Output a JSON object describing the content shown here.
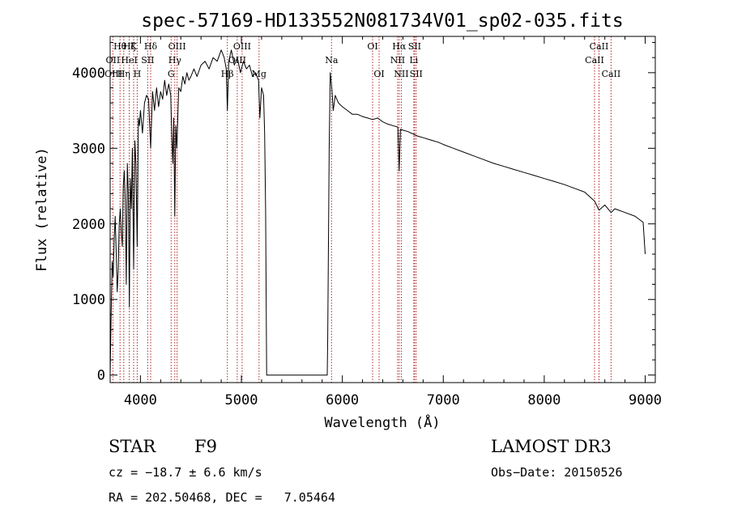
{
  "chart_data": {
    "type": "line",
    "title": "spec-57169-HD133552N081734V01_sp02-035.fits",
    "xlabel": "Wavelength (Å)",
    "ylabel": "Flux (relative)",
    "xlim": [
      3700,
      9100
    ],
    "ylim": [
      -100,
      4480
    ],
    "xticks": [
      4000,
      5000,
      6000,
      7000,
      8000,
      9000
    ],
    "yticks": [
      0,
      1000,
      2000,
      3000,
      4000
    ],
    "grid": false,
    "series": [
      {
        "x": [
          3700,
          3710,
          3720,
          3730,
          3740,
          3750,
          3760,
          3770,
          3780,
          3790,
          3800,
          3810,
          3820,
          3830,
          3840,
          3850,
          3860,
          3870,
          3880,
          3890,
          3900,
          3910,
          3920,
          3933,
          3945,
          3955,
          3968,
          3980,
          3990,
          4000,
          4020,
          4040,
          4060,
          4080,
          4101,
          4120,
          4140,
          4160,
          4180,
          4200,
          4220,
          4240,
          4260,
          4280,
          4300,
          4310,
          4320,
          4330,
          4340,
          4350,
          4360,
          4380,
          4400,
          4420,
          4440,
          4460,
          4480,
          4500,
          4530,
          4560,
          4600,
          4640,
          4680,
          4720,
          4760,
          4800,
          4830,
          4850,
          4861,
          4875,
          4900,
          4930,
          4960,
          4990,
          5020,
          5050,
          5080,
          5110,
          5140,
          5170,
          5183,
          5200,
          5220,
          5230,
          5240,
          5250,
          5850,
          5855,
          5870,
          5880,
          5895,
          5910,
          5930,
          5960,
          6000,
          6050,
          6100,
          6150,
          6200,
          6250,
          6300,
          6350,
          6400,
          6450,
          6500,
          6550,
          6563,
          6575,
          6600,
          6650,
          6700,
          6750,
          6800,
          6850,
          6900,
          6950,
          7000,
          7100,
          7200,
          7300,
          7400,
          7500,
          7600,
          7700,
          7800,
          7900,
          8000,
          8100,
          8200,
          8300,
          8400,
          8500,
          8542,
          8600,
          8662,
          8700,
          8800,
          8900,
          8980,
          9000
        ],
        "y": [
          0,
          800,
          1500,
          1300,
          1800,
          2100,
          1600,
          1100,
          1400,
          2000,
          2200,
          1900,
          1700,
          2500,
          2700,
          2300,
          1200,
          2800,
          2400,
          900,
          2600,
          2200,
          3000,
          1400,
          3100,
          2800,
          1700,
          3400,
          3300,
          3500,
          3200,
          3600,
          3700,
          3650,
          3000,
          3750,
          3500,
          3800,
          3550,
          3750,
          3650,
          3900,
          3700,
          3850,
          3700,
          3200,
          2800,
          3400,
          2100,
          3300,
          3000,
          3800,
          3750,
          3950,
          3850,
          4000,
          3900,
          3950,
          4050,
          3950,
          4100,
          4150,
          4050,
          4200,
          4150,
          4300,
          4200,
          4050,
          3500,
          4150,
          4300,
          4100,
          4200,
          4000,
          4150,
          4050,
          4100,
          3950,
          4000,
          3900,
          3400,
          3800,
          3700,
          3200,
          2200,
          0,
          0,
          500,
          3000,
          4000,
          3800,
          3500,
          3700,
          3600,
          3550,
          3500,
          3450,
          3450,
          3420,
          3400,
          3380,
          3400,
          3350,
          3320,
          3300,
          3280,
          2700,
          3250,
          3240,
          3220,
          3190,
          3160,
          3140,
          3120,
          3100,
          3080,
          3050,
          3000,
          2950,
          2900,
          2850,
          2800,
          2760,
          2720,
          2680,
          2640,
          2600,
          2560,
          2520,
          2470,
          2420,
          2300,
          2180,
          2250,
          2150,
          2200,
          2150,
          2100,
          2020,
          1600
        ]
      }
    ],
    "line_labels": [
      {
        "text": "Hθ",
        "x": 3798,
        "row": 1
      },
      {
        "text": "OII",
        "x": 3727,
        "row": 2
      },
      {
        "text": "OIII",
        "x": 3734,
        "row": 3
      },
      {
        "text": "Hη",
        "x": 3835,
        "row": 3
      },
      {
        "text": "Hζ",
        "x": 3889,
        "row": 1
      },
      {
        "text": "HeI",
        "x": 3889,
        "row": 2
      },
      {
        "text": "K",
        "x": 3933,
        "row": 1
      },
      {
        "text": "H",
        "x": 3968,
        "row": 3
      },
      {
        "text": "Hδ",
        "x": 4101,
        "row": 1
      },
      {
        "text": "SII",
        "x": 4072,
        "row": 2
      },
      {
        "text": "OIII",
        "x": 4363,
        "row": 1
      },
      {
        "text": "Hγ",
        "x": 4340,
        "row": 2
      },
      {
        "text": "G",
        "x": 4304,
        "row": 3
      },
      {
        "text": "OIII",
        "x": 5007,
        "row": 1
      },
      {
        "text": "OIII",
        "x": 4959,
        "row": 2
      },
      {
        "text": "Hβ",
        "x": 4861,
        "row": 3
      },
      {
        "text": "Mg",
        "x": 5175,
        "row": 3
      },
      {
        "text": "Na",
        "x": 5893,
        "row": 2
      },
      {
        "text": "OI",
        "x": 6300,
        "row": 1
      },
      {
        "text": "OI",
        "x": 6364,
        "row": 3
      },
      {
        "text": "Hα",
        "x": 6563,
        "row": 1
      },
      {
        "text": "SII",
        "x": 6716,
        "row": 1
      },
      {
        "text": "NII",
        "x": 6548,
        "row": 2
      },
      {
        "text": "Li",
        "x": 6708,
        "row": 2
      },
      {
        "text": "NII",
        "x": 6584,
        "row": 3
      },
      {
        "text": "SII",
        "x": 6731,
        "row": 3
      },
      {
        "text": "CaII",
        "x": 8542,
        "row": 1
      },
      {
        "text": "CaII",
        "x": 8498,
        "row": 2
      },
      {
        "text": "CaII",
        "x": 8662,
        "row": 3
      }
    ],
    "line_markers": [
      3727,
      3798,
      3835,
      3889,
      3933,
      3968,
      4072,
      4101,
      4304,
      4340,
      4363,
      4861,
      4959,
      5007,
      5175,
      5893,
      6300,
      6364,
      6548,
      6563,
      6584,
      6708,
      6716,
      6731,
      8498,
      8542,
      8662
    ],
    "colors": {
      "marker": "#b22222",
      "line": "#000000",
      "axis": "#000000"
    }
  },
  "info": {
    "class": "STAR",
    "subclass": "F9",
    "survey": "LAMOST DR3",
    "cz": "cz = −18.7 ± 6.6 km/s",
    "obsdate": "Obs−Date: 20150526",
    "radec": "RA = 202.50468, DEC =   7.05464"
  }
}
